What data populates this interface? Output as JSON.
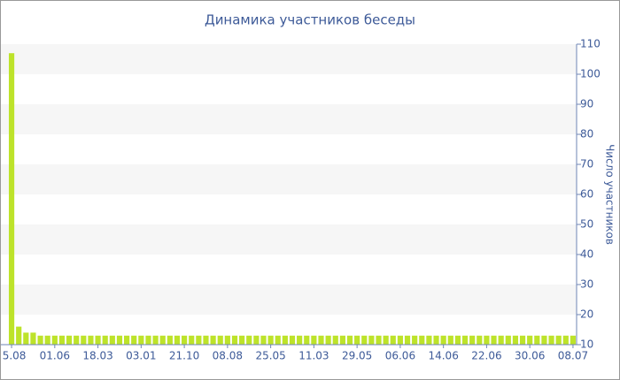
{
  "chart_data": {
    "type": "bar",
    "title": "Динамика участников беседы",
    "y_axis_label": "Число участников",
    "categories": [
      "5.08",
      null,
      null,
      null,
      null,
      null,
      "01.06",
      null,
      null,
      null,
      null,
      null,
      "18.03",
      null,
      null,
      null,
      null,
      null,
      "03.01",
      null,
      null,
      null,
      null,
      null,
      "21.10",
      null,
      null,
      null,
      null,
      null,
      "08.08",
      null,
      null,
      null,
      null,
      null,
      "25.05",
      null,
      null,
      null,
      null,
      null,
      "11.03",
      null,
      null,
      null,
      null,
      null,
      "29.05",
      null,
      null,
      null,
      null,
      null,
      "06.06",
      null,
      null,
      null,
      null,
      null,
      "14.06",
      null,
      null,
      null,
      null,
      null,
      "22.06",
      null,
      null,
      null,
      null,
      null,
      "30.06",
      null,
      null,
      null,
      null,
      null,
      "08.07"
    ],
    "values": [
      107,
      16,
      14,
      14,
      13,
      13,
      13,
      13,
      13,
      13,
      13,
      13,
      13,
      13,
      13,
      13,
      13,
      13,
      13,
      13,
      13,
      13,
      13,
      13,
      13,
      13,
      13,
      13,
      13,
      13,
      13,
      13,
      13,
      13,
      13,
      13,
      13,
      13,
      13,
      13,
      13,
      13,
      13,
      13,
      13,
      13,
      13,
      13,
      13,
      13,
      13,
      13,
      13,
      13,
      13,
      13,
      13,
      13,
      13,
      13,
      13,
      13,
      13,
      13,
      13,
      13,
      13,
      13,
      13,
      13,
      13,
      13,
      13,
      13,
      13,
      13,
      13,
      13,
      13
    ],
    "color": "#bde32a",
    "ylim": [
      10,
      110
    ],
    "yticks": [
      10,
      20,
      30,
      40,
      50,
      60,
      70,
      80,
      90,
      100,
      110
    ],
    "grid": true
  }
}
